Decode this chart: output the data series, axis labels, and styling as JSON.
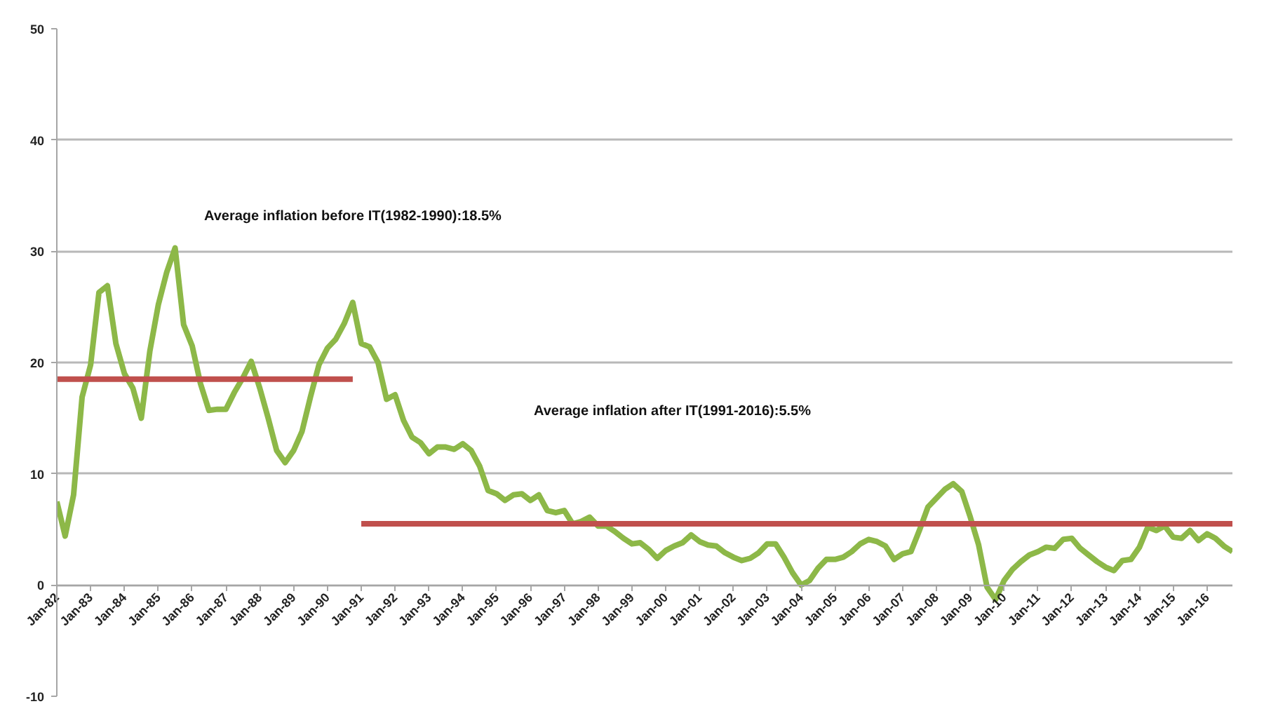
{
  "chart_data": {
    "type": "line",
    "ylim": [
      -10,
      50
    ],
    "yticks": [
      -10,
      0,
      10,
      20,
      30,
      40,
      50
    ],
    "grid": "y",
    "xlim": [
      "1982-01",
      "2016-10"
    ],
    "xticks": [
      {
        "value": "1982-01",
        "label": "Jan-82"
      },
      {
        "value": "1983-01",
        "label": "Jan-83"
      },
      {
        "value": "1984-01",
        "label": "Jan-84"
      },
      {
        "value": "1985-01",
        "label": "Jan-85"
      },
      {
        "value": "1986-01",
        "label": "Jan-86"
      },
      {
        "value": "1987-01",
        "label": "Jan-87"
      },
      {
        "value": "1988-01",
        "label": "Jan-88"
      },
      {
        "value": "1989-01",
        "label": "Jan-89"
      },
      {
        "value": "1990-01",
        "label": "Jan-90"
      },
      {
        "value": "1991-01",
        "label": "Jan-91"
      },
      {
        "value": "1992-01",
        "label": "Jan-92"
      },
      {
        "value": "1993-01",
        "label": "Jan-93"
      },
      {
        "value": "1994-01",
        "label": "Jan-94"
      },
      {
        "value": "1995-01",
        "label": "Jan-95"
      },
      {
        "value": "1996-01",
        "label": "Jan-96"
      },
      {
        "value": "1997-01",
        "label": "Jan-97"
      },
      {
        "value": "1998-01",
        "label": "Jan-98"
      },
      {
        "value": "1999-01",
        "label": "Jan-99"
      },
      {
        "value": "2000-01",
        "label": "Jan-00"
      },
      {
        "value": "2001-01",
        "label": "Jan-01"
      },
      {
        "value": "2002-01",
        "label": "Jan-02"
      },
      {
        "value": "2003-01",
        "label": "Jan-03"
      },
      {
        "value": "2004-01",
        "label": "Jan-04"
      },
      {
        "value": "2005-01",
        "label": "Jan-05"
      },
      {
        "value": "2006-01",
        "label": "Jan-06"
      },
      {
        "value": "2007-01",
        "label": "Jan-07"
      },
      {
        "value": "2008-01",
        "label": "Jan-08"
      },
      {
        "value": "2009-01",
        "label": "Jan-09"
      },
      {
        "value": "2010-01",
        "label": "Jan-10"
      },
      {
        "value": "2011-01",
        "label": "Jan-11"
      },
      {
        "value": "2012-01",
        "label": "Jan-12"
      },
      {
        "value": "2013-01",
        "label": "Jan-13"
      },
      {
        "value": "2014-01",
        "label": "Jan-14"
      },
      {
        "value": "2015-01",
        "label": "Jan-15"
      },
      {
        "value": "2016-01",
        "label": "Jan-16"
      }
    ],
    "x": [
      "1982-01",
      "1982-04",
      "1982-07",
      "1982-10",
      "1983-01",
      "1983-04",
      "1983-07",
      "1983-10",
      "1984-01",
      "1984-04",
      "1984-07",
      "1984-10",
      "1985-01",
      "1985-04",
      "1985-07",
      "1985-10",
      "1986-01",
      "1986-04",
      "1986-07",
      "1986-10",
      "1987-01",
      "1987-04",
      "1987-07",
      "1987-10",
      "1988-01",
      "1988-04",
      "1988-07",
      "1988-10",
      "1989-01",
      "1989-04",
      "1989-07",
      "1989-10",
      "1990-01",
      "1990-04",
      "1990-07",
      "1990-10",
      "1991-01",
      "1991-04",
      "1991-07",
      "1991-10",
      "1992-01",
      "1992-04",
      "1992-07",
      "1992-10",
      "1993-01",
      "1993-04",
      "1993-07",
      "1993-10",
      "1994-01",
      "1994-04",
      "1994-07",
      "1994-10",
      "1995-01",
      "1995-04",
      "1995-07",
      "1995-10",
      "1996-01",
      "1996-04",
      "1996-07",
      "1996-10",
      "1997-01",
      "1997-04",
      "1997-07",
      "1997-10",
      "1998-01",
      "1998-04",
      "1998-07",
      "1998-10",
      "1999-01",
      "1999-04",
      "1999-07",
      "1999-10",
      "2000-01",
      "2000-04",
      "2000-07",
      "2000-10",
      "2001-01",
      "2001-04",
      "2001-07",
      "2001-10",
      "2002-01",
      "2002-04",
      "2002-07",
      "2002-10",
      "2003-01",
      "2003-04",
      "2003-07",
      "2003-10",
      "2004-01",
      "2004-04",
      "2004-07",
      "2004-10",
      "2005-01",
      "2005-04",
      "2005-07",
      "2005-10",
      "2006-01",
      "2006-04",
      "2006-07",
      "2006-10",
      "2007-01",
      "2007-04",
      "2007-07",
      "2007-10",
      "2008-01",
      "2008-04",
      "2008-07",
      "2008-10",
      "2009-01",
      "2009-04",
      "2009-07",
      "2009-10",
      "2010-01",
      "2010-04",
      "2010-07",
      "2010-10",
      "2011-01",
      "2011-04",
      "2011-07",
      "2011-10",
      "2012-01",
      "2012-04",
      "2012-07",
      "2012-10",
      "2013-01",
      "2013-04",
      "2013-07",
      "2013-10",
      "2014-01",
      "2014-04",
      "2014-07",
      "2014-10",
      "2015-01",
      "2015-04",
      "2015-07",
      "2015-10",
      "2016-01",
      "2016-04",
      "2016-07",
      "2016-10"
    ],
    "series": [
      {
        "color": "#8db848",
        "values": [
          7.5,
          4.4,
          8.1,
          16.9,
          19.8,
          26.3,
          26.9,
          21.7,
          19,
          17.7,
          15,
          21,
          25.2,
          28.1,
          30.3,
          23.4,
          21.5,
          18.1,
          15.7,
          15.8,
          15.8,
          17.3,
          18.6,
          20.1,
          17.7,
          15,
          12.1,
          11,
          12.1,
          13.8,
          16.9,
          19.8,
          21.3,
          22.1,
          23.5,
          25.4,
          21.7,
          21.4,
          20,
          16.7,
          17.1,
          14.8,
          13.3,
          12.8,
          11.8,
          12.4,
          12.4,
          12.2,
          12.7,
          12.1,
          10.7,
          8.5,
          8.2,
          7.6,
          8.1,
          8.2,
          7.6,
          8.1,
          6.7,
          6.5,
          6.7,
          5.5,
          5.7,
          6.1,
          5.3,
          5.3,
          4.8,
          4.2,
          3.7,
          3.8,
          3.2,
          2.4,
          3.1,
          3.5,
          3.8,
          4.5,
          3.9,
          3.6,
          3.5,
          2.9,
          2.5,
          2.2,
          2.4,
          2.9,
          3.7,
          3.7,
          2.5,
          1.1,
          0,
          0.4,
          1.5,
          2.3,
          2.3,
          2.5,
          3.0,
          3.7,
          4.1,
          3.9,
          3.5,
          2.3,
          2.8,
          3.0,
          4.9,
          7.0,
          7.8,
          8.6,
          9.1,
          8.4,
          6.1,
          3.6,
          -0.2,
          -1.3,
          0.4,
          1.4,
          2.1,
          2.7,
          3.0,
          3.4,
          3.3,
          4.1,
          4.2,
          3.3,
          2.7,
          2.1,
          1.6,
          1.3,
          2.2,
          2.3,
          3.4,
          5.2,
          4.9,
          5.3,
          4.3,
          4.2,
          4.9,
          4.0,
          4.6,
          4.2,
          3.5,
          3.0
        ]
      },
      {
        "type": "line",
        "color": "#c0504d",
        "x": [
          "1982-01",
          "1990-10"
        ],
        "values": [
          18.5,
          18.5
        ]
      },
      {
        "type": "line",
        "color": "#c0504d",
        "x": [
          "1991-01",
          "2016-10"
        ],
        "values": [
          5.5,
          5.5
        ]
      }
    ],
    "annotations": [
      "Average inflation before IT(1982-1990):18.5%",
      "Average inflation after IT(1991-2016):5.5%"
    ],
    "line_style": "solid",
    "marker": "none"
  }
}
